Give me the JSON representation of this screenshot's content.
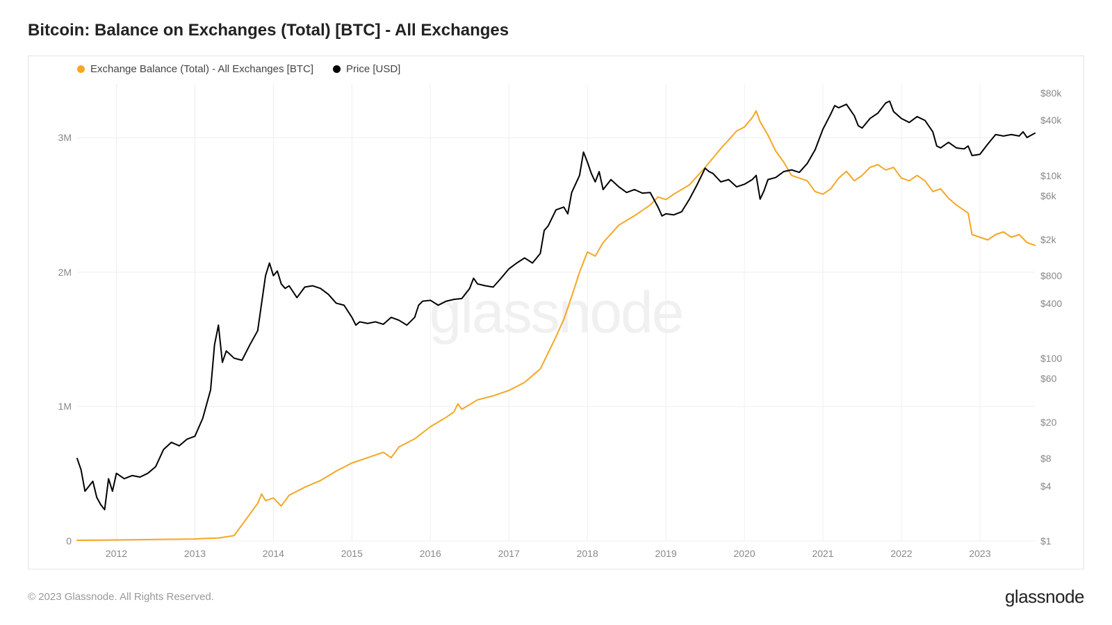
{
  "title": "Bitcoin: Balance on Exchanges (Total) [BTC] - All Exchanges",
  "legend": {
    "series1_label": "Exchange Balance (Total) - All Exchanges [BTC]",
    "series2_label": "Price [USD]"
  },
  "watermark": "glassnode",
  "footer": {
    "copyright": "© 2023 Glassnode. All Rights Reserved.",
    "brand": "glassnode"
  },
  "chart": {
    "type": "dual-axis-line",
    "background_color": "#ffffff",
    "border_color": "#e4e4e4",
    "grid_color": "#eeeeee",
    "label_color": "#888888",
    "title_fontsize": 24,
    "label_fontsize": 14,
    "line_width": 2,
    "x_axis": {
      "min": 2011.5,
      "max": 2023.7,
      "tick_values": [
        2012,
        2013,
        2014,
        2015,
        2016,
        2017,
        2018,
        2019,
        2020,
        2021,
        2022,
        2023
      ],
      "tick_labels": [
        "2012",
        "2013",
        "2014",
        "2015",
        "2016",
        "2017",
        "2018",
        "2019",
        "2020",
        "2021",
        "2022",
        "2023"
      ]
    },
    "y_left": {
      "label": "",
      "scale": "linear",
      "min": 0,
      "max": 3400000,
      "tick_values": [
        0,
        1000000,
        2000000,
        3000000
      ],
      "tick_labels": [
        "0",
        "1M",
        "2M",
        "3M"
      ]
    },
    "y_right": {
      "label": "",
      "scale": "log",
      "min": 1,
      "max": 100000,
      "tick_values": [
        1,
        4,
        8,
        20,
        60,
        100,
        400,
        800,
        2000,
        6000,
        10000,
        40000,
        80000
      ],
      "tick_labels": [
        "$1",
        "$4",
        "$8",
        "$20",
        "$60",
        "$100",
        "$400",
        "$800",
        "$2k",
        "$6k",
        "$10k",
        "$40k",
        "$80k"
      ]
    },
    "series1": {
      "name": "Exchange Balance (Total) - All Exchanges [BTC]",
      "color": "#f5a623",
      "axis": "left",
      "data": [
        [
          2011.5,
          5000
        ],
        [
          2011.7,
          6000
        ],
        [
          2012.0,
          8000
        ],
        [
          2012.3,
          10000
        ],
        [
          2012.6,
          12000
        ],
        [
          2012.9,
          14000
        ],
        [
          2013.0,
          15000
        ],
        [
          2013.1,
          18000
        ],
        [
          2013.3,
          22000
        ],
        [
          2013.5,
          40000
        ],
        [
          2013.7,
          200000
        ],
        [
          2013.8,
          280000
        ],
        [
          2013.85,
          350000
        ],
        [
          2013.9,
          300000
        ],
        [
          2014.0,
          320000
        ],
        [
          2014.1,
          260000
        ],
        [
          2014.2,
          340000
        ],
        [
          2014.4,
          400000
        ],
        [
          2014.6,
          450000
        ],
        [
          2014.8,
          520000
        ],
        [
          2015.0,
          580000
        ],
        [
          2015.2,
          620000
        ],
        [
          2015.4,
          660000
        ],
        [
          2015.5,
          620000
        ],
        [
          2015.6,
          700000
        ],
        [
          2015.8,
          760000
        ],
        [
          2016.0,
          850000
        ],
        [
          2016.2,
          920000
        ],
        [
          2016.3,
          960000
        ],
        [
          2016.35,
          1020000
        ],
        [
          2016.4,
          980000
        ],
        [
          2016.6,
          1050000
        ],
        [
          2016.8,
          1080000
        ],
        [
          2017.0,
          1120000
        ],
        [
          2017.2,
          1180000
        ],
        [
          2017.4,
          1280000
        ],
        [
          2017.5,
          1400000
        ],
        [
          2017.6,
          1520000
        ],
        [
          2017.7,
          1650000
        ],
        [
          2017.8,
          1820000
        ],
        [
          2017.9,
          2000000
        ],
        [
          2018.0,
          2150000
        ],
        [
          2018.1,
          2120000
        ],
        [
          2018.2,
          2220000
        ],
        [
          2018.4,
          2350000
        ],
        [
          2018.6,
          2420000
        ],
        [
          2018.8,
          2500000
        ],
        [
          2018.9,
          2560000
        ],
        [
          2019.0,
          2540000
        ],
        [
          2019.1,
          2580000
        ],
        [
          2019.3,
          2650000
        ],
        [
          2019.5,
          2780000
        ],
        [
          2019.7,
          2920000
        ],
        [
          2019.9,
          3050000
        ],
        [
          2020.0,
          3080000
        ],
        [
          2020.1,
          3150000
        ],
        [
          2020.15,
          3200000
        ],
        [
          2020.2,
          3120000
        ],
        [
          2020.3,
          3020000
        ],
        [
          2020.4,
          2900000
        ],
        [
          2020.5,
          2820000
        ],
        [
          2020.6,
          2720000
        ],
        [
          2020.8,
          2680000
        ],
        [
          2020.9,
          2600000
        ],
        [
          2021.0,
          2580000
        ],
        [
          2021.1,
          2620000
        ],
        [
          2021.2,
          2700000
        ],
        [
          2021.3,
          2750000
        ],
        [
          2021.4,
          2680000
        ],
        [
          2021.5,
          2720000
        ],
        [
          2021.6,
          2780000
        ],
        [
          2021.7,
          2800000
        ],
        [
          2021.8,
          2760000
        ],
        [
          2021.9,
          2780000
        ],
        [
          2022.0,
          2700000
        ],
        [
          2022.1,
          2680000
        ],
        [
          2022.2,
          2720000
        ],
        [
          2022.3,
          2680000
        ],
        [
          2022.4,
          2600000
        ],
        [
          2022.5,
          2620000
        ],
        [
          2022.6,
          2550000
        ],
        [
          2022.7,
          2500000
        ],
        [
          2022.8,
          2460000
        ],
        [
          2022.85,
          2440000
        ],
        [
          2022.9,
          2280000
        ],
        [
          2023.0,
          2260000
        ],
        [
          2023.1,
          2240000
        ],
        [
          2023.2,
          2280000
        ],
        [
          2023.3,
          2300000
        ],
        [
          2023.4,
          2260000
        ],
        [
          2023.5,
          2280000
        ],
        [
          2023.6,
          2220000
        ],
        [
          2023.7,
          2200000
        ]
      ]
    },
    "series2": {
      "name": "Price [USD]",
      "color": "#000000",
      "axis": "right",
      "data": [
        [
          2011.5,
          8
        ],
        [
          2011.55,
          6
        ],
        [
          2011.6,
          3.5
        ],
        [
          2011.7,
          4.5
        ],
        [
          2011.75,
          3
        ],
        [
          2011.8,
          2.5
        ],
        [
          2011.85,
          2.2
        ],
        [
          2011.9,
          4.8
        ],
        [
          2011.95,
          3.5
        ],
        [
          2012.0,
          5.5
        ],
        [
          2012.1,
          4.8
        ],
        [
          2012.2,
          5.2
        ],
        [
          2012.3,
          5.0
        ],
        [
          2012.4,
          5.5
        ],
        [
          2012.5,
          6.5
        ],
        [
          2012.6,
          10
        ],
        [
          2012.7,
          12
        ],
        [
          2012.8,
          11
        ],
        [
          2012.9,
          13
        ],
        [
          2013.0,
          14
        ],
        [
          2013.1,
          22
        ],
        [
          2013.2,
          45
        ],
        [
          2013.25,
          140
        ],
        [
          2013.3,
          230
        ],
        [
          2013.35,
          90
        ],
        [
          2013.4,
          120
        ],
        [
          2013.5,
          100
        ],
        [
          2013.6,
          95
        ],
        [
          2013.7,
          140
        ],
        [
          2013.8,
          200
        ],
        [
          2013.9,
          800
        ],
        [
          2013.95,
          1100
        ],
        [
          2014.0,
          800
        ],
        [
          2014.05,
          900
        ],
        [
          2014.1,
          650
        ],
        [
          2014.15,
          580
        ],
        [
          2014.2,
          620
        ],
        [
          2014.3,
          460
        ],
        [
          2014.4,
          600
        ],
        [
          2014.5,
          620
        ],
        [
          2014.6,
          580
        ],
        [
          2014.7,
          500
        ],
        [
          2014.8,
          400
        ],
        [
          2014.9,
          380
        ],
        [
          2015.0,
          280
        ],
        [
          2015.05,
          230
        ],
        [
          2015.1,
          250
        ],
        [
          2015.2,
          240
        ],
        [
          2015.3,
          250
        ],
        [
          2015.4,
          235
        ],
        [
          2015.5,
          280
        ],
        [
          2015.6,
          260
        ],
        [
          2015.7,
          230
        ],
        [
          2015.8,
          280
        ],
        [
          2015.85,
          380
        ],
        [
          2015.9,
          420
        ],
        [
          2016.0,
          430
        ],
        [
          2016.1,
          380
        ],
        [
          2016.2,
          420
        ],
        [
          2016.3,
          440
        ],
        [
          2016.4,
          450
        ],
        [
          2016.5,
          580
        ],
        [
          2016.55,
          750
        ],
        [
          2016.6,
          650
        ],
        [
          2016.7,
          620
        ],
        [
          2016.8,
          600
        ],
        [
          2016.9,
          750
        ],
        [
          2017.0,
          950
        ],
        [
          2017.1,
          1100
        ],
        [
          2017.2,
          1250
        ],
        [
          2017.3,
          1100
        ],
        [
          2017.4,
          1400
        ],
        [
          2017.45,
          2500
        ],
        [
          2017.5,
          2800
        ],
        [
          2017.6,
          4200
        ],
        [
          2017.7,
          4500
        ],
        [
          2017.75,
          3800
        ],
        [
          2017.8,
          6500
        ],
        [
          2017.9,
          10000
        ],
        [
          2017.95,
          18000
        ],
        [
          2018.0,
          14000
        ],
        [
          2018.05,
          10500
        ],
        [
          2018.1,
          8500
        ],
        [
          2018.15,
          11000
        ],
        [
          2018.2,
          7000
        ],
        [
          2018.3,
          9000
        ],
        [
          2018.4,
          7500
        ],
        [
          2018.5,
          6500
        ],
        [
          2018.6,
          7000
        ],
        [
          2018.7,
          6400
        ],
        [
          2018.8,
          6500
        ],
        [
          2018.9,
          4500
        ],
        [
          2018.95,
          3600
        ],
        [
          2019.0,
          3800
        ],
        [
          2019.1,
          3700
        ],
        [
          2019.2,
          4000
        ],
        [
          2019.3,
          5500
        ],
        [
          2019.4,
          8000
        ],
        [
          2019.5,
          12000
        ],
        [
          2019.55,
          11000
        ],
        [
          2019.6,
          10500
        ],
        [
          2019.7,
          8500
        ],
        [
          2019.8,
          9000
        ],
        [
          2019.9,
          7500
        ],
        [
          2020.0,
          8000
        ],
        [
          2020.1,
          9000
        ],
        [
          2020.15,
          10000
        ],
        [
          2020.2,
          5500
        ],
        [
          2020.25,
          6800
        ],
        [
          2020.3,
          9000
        ],
        [
          2020.4,
          9500
        ],
        [
          2020.5,
          11000
        ],
        [
          2020.6,
          11500
        ],
        [
          2020.7,
          10800
        ],
        [
          2020.8,
          13500
        ],
        [
          2020.9,
          19000
        ],
        [
          2021.0,
          32000
        ],
        [
          2021.1,
          47000
        ],
        [
          2021.15,
          58000
        ],
        [
          2021.2,
          55000
        ],
        [
          2021.3,
          60000
        ],
        [
          2021.4,
          45000
        ],
        [
          2021.45,
          35000
        ],
        [
          2021.5,
          33000
        ],
        [
          2021.6,
          42000
        ],
        [
          2021.7,
          48000
        ],
        [
          2021.8,
          62000
        ],
        [
          2021.85,
          65000
        ],
        [
          2021.9,
          50000
        ],
        [
          2022.0,
          42000
        ],
        [
          2022.1,
          38000
        ],
        [
          2022.2,
          44000
        ],
        [
          2022.3,
          40000
        ],
        [
          2022.4,
          30000
        ],
        [
          2022.45,
          21000
        ],
        [
          2022.5,
          20000
        ],
        [
          2022.6,
          23000
        ],
        [
          2022.7,
          20000
        ],
        [
          2022.8,
          19500
        ],
        [
          2022.85,
          21000
        ],
        [
          2022.9,
          16500
        ],
        [
          2023.0,
          17000
        ],
        [
          2023.1,
          22000
        ],
        [
          2023.2,
          28000
        ],
        [
          2023.3,
          27000
        ],
        [
          2023.4,
          28000
        ],
        [
          2023.5,
          27000
        ],
        [
          2023.55,
          30000
        ],
        [
          2023.6,
          26000
        ],
        [
          2023.7,
          29000
        ]
      ]
    }
  }
}
